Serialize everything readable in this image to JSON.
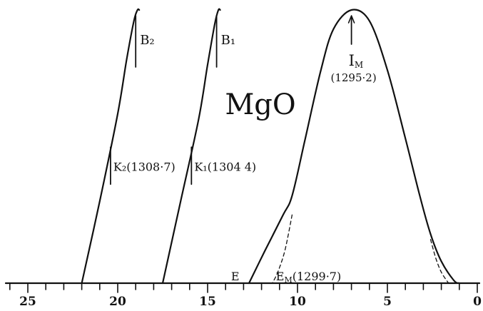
{
  "chart_data": {
    "type": "line",
    "title": "MgO",
    "xlabel": "",
    "ylabel": "",
    "x_reversed": true,
    "xlim": [
      0,
      26
    ],
    "ylim": [
      0,
      1
    ],
    "x_ticks": [
      0,
      5,
      10,
      15,
      20,
      25
    ],
    "x_tick_labels": [
      "0",
      "5",
      "10",
      "15",
      "20",
      "25"
    ],
    "grid": false,
    "series": [
      {
        "name": "",
        "style": "solid",
        "x": [
          22.0,
          21.0,
          20.0,
          19.5,
          19.1,
          18.9,
          18.8
        ],
        "y": [
          0.0,
          0.3,
          0.62,
          0.82,
          0.96,
          1.0,
          1.0
        ]
      },
      {
        "name": "",
        "style": "solid",
        "x": [
          17.5,
          16.5,
          15.5,
          15.0,
          14.6,
          14.4,
          14.3
        ],
        "y": [
          0.0,
          0.3,
          0.6,
          0.8,
          0.95,
          1.0,
          1.0
        ]
      },
      {
        "name": "",
        "style": "solid",
        "x": [
          12.7,
          11.8,
          10.8,
          10.3,
          9.6,
          8.7,
          8.0,
          7.0,
          6.0,
          5.0,
          4.0,
          3.2,
          2.6,
          2.0,
          1.3,
          1.0
        ],
        "y": [
          0.0,
          0.12,
          0.25,
          0.32,
          0.52,
          0.78,
          0.93,
          1.0,
          0.96,
          0.78,
          0.53,
          0.32,
          0.18,
          0.08,
          0.01,
          0.0
        ]
      },
      {
        "name": "",
        "style": "dashed",
        "x": [
          10.3,
          10.7,
          11.1,
          11.4
        ],
        "y": [
          0.25,
          0.12,
          0.04,
          0.0
        ]
      },
      {
        "name": "",
        "style": "dashed",
        "x": [
          2.6,
          2.3,
          2.0,
          1.6
        ],
        "y": [
          0.16,
          0.09,
          0.04,
          0.0
        ]
      }
    ],
    "annotations": [
      {
        "id": "b2",
        "text": "B₂",
        "kind": "tick-label",
        "x": 19.0,
        "y": 1.0
      },
      {
        "id": "b1",
        "text": "B₁",
        "kind": "tick-label",
        "x": 14.5,
        "y": 1.0
      },
      {
        "id": "k2",
        "text": "K₂(1308·7)",
        "kind": "tick-label",
        "x": 20.4,
        "y": 0.43
      },
      {
        "id": "k1",
        "text": "K₁(1304 4)",
        "kind": "tick-label",
        "x": 15.9,
        "y": 0.43
      },
      {
        "id": "im",
        "text": "I",
        "sub": "M",
        "value": "(1295·2)",
        "kind": "arrow",
        "x": 7.0,
        "y": 1.0
      },
      {
        "id": "e",
        "text": "E",
        "kind": "point-label",
        "x": 13.3,
        "y": 0.0
      },
      {
        "id": "em",
        "text": "E",
        "sub": "M",
        "value": "(1299·7)",
        "kind": "point-label",
        "x": 11.0,
        "y": 0.0
      }
    ]
  }
}
